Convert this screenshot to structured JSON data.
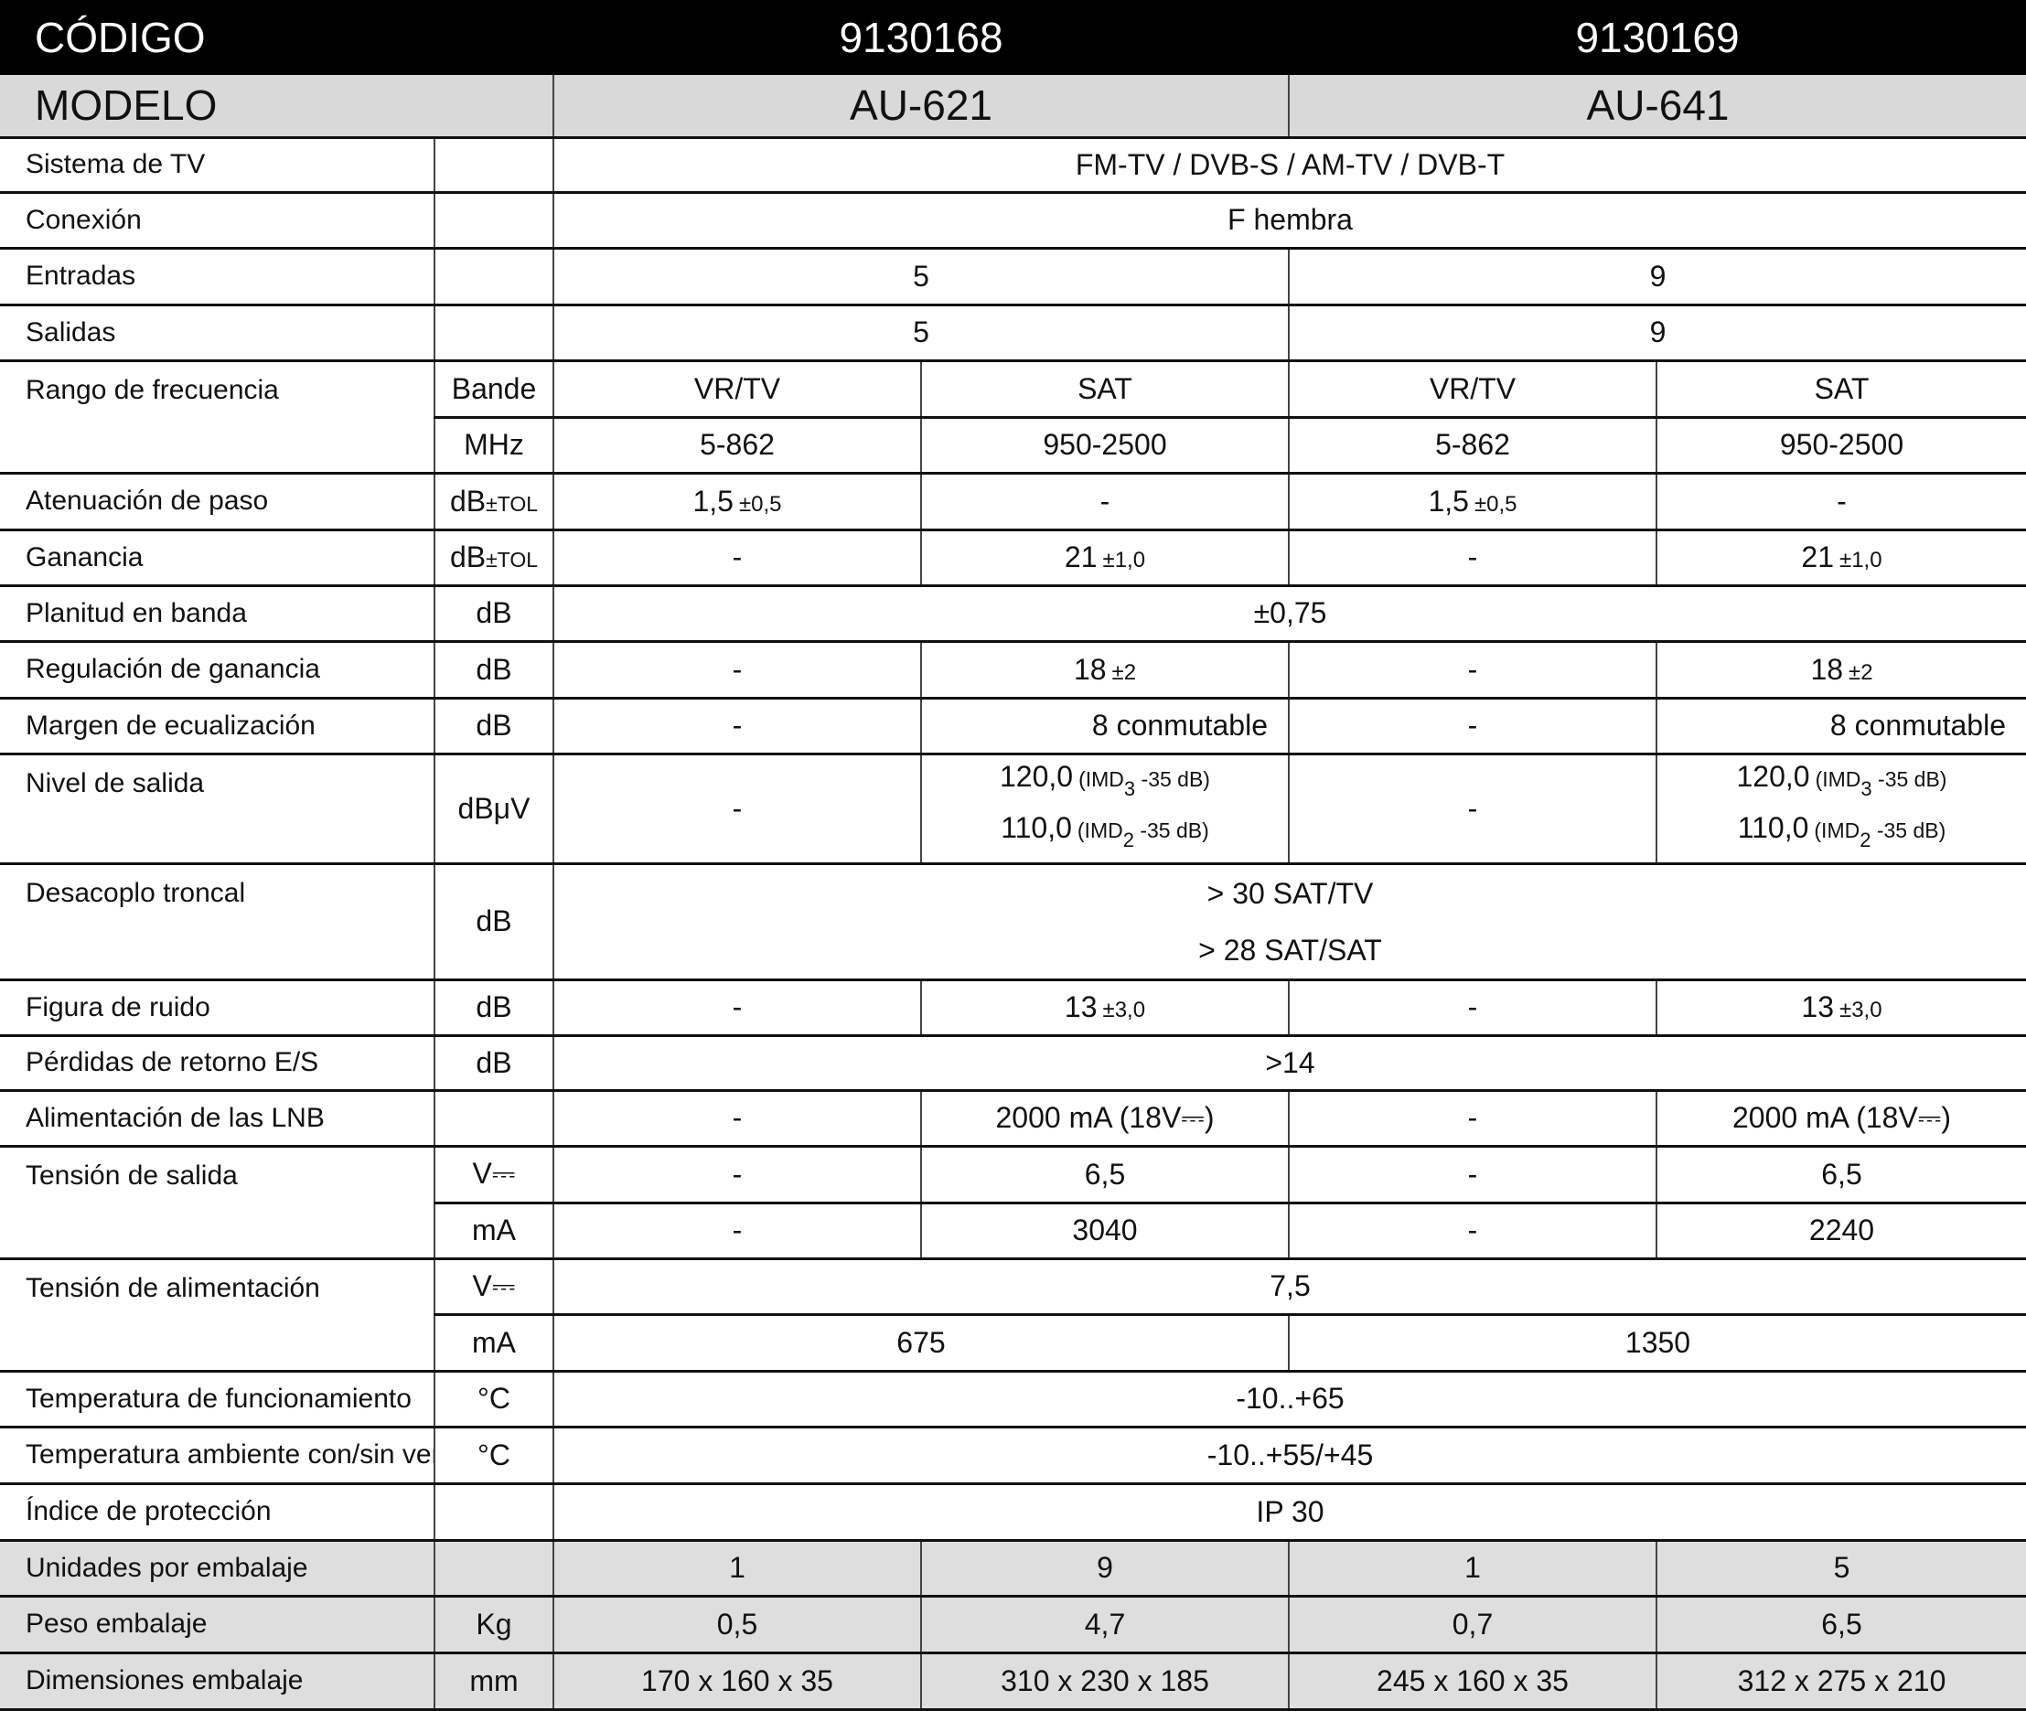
{
  "header": {
    "code_label": "CÓDIGO",
    "codes": [
      "9130168",
      "9130169"
    ],
    "model_label": "MODELO",
    "models": [
      "AU-621",
      "AU-641"
    ]
  },
  "rows": [
    {
      "label": "Sistema de TV",
      "unit": "",
      "cells": [
        {
          "v": "FM-TV / DVB-S / AM-TV / DVB-T",
          "span": 4
        }
      ]
    },
    {
      "label": "Conexión",
      "unit": "",
      "cells": [
        {
          "v": "F hembra",
          "span": 4
        }
      ]
    },
    {
      "label": "Entradas",
      "unit": "",
      "cells": [
        {
          "v": "5",
          "span": 2
        },
        {
          "v": "9",
          "span": 2
        }
      ]
    },
    {
      "label": "Salidas",
      "unit": "",
      "cells": [
        {
          "v": "5",
          "span": 2
        },
        {
          "v": "9",
          "span": 2
        }
      ]
    },
    {
      "label": "Rango de frecuencia",
      "rowspan": 2,
      "unit": "Bande",
      "cells": [
        {
          "v": "VR/TV"
        },
        {
          "v": "SAT"
        },
        {
          "v": "VR/TV"
        },
        {
          "v": "SAT"
        }
      ]
    },
    {
      "unit": "MHz",
      "cells": [
        {
          "v": "5-862"
        },
        {
          "v": "950-2500"
        },
        {
          "v": "5-862"
        },
        {
          "v": "950-2500"
        }
      ]
    },
    {
      "label": "Atenuación de paso",
      "unit": "dB",
      "unit_tol": "±TOL",
      "cells": [
        {
          "v": "1,5",
          "tol": "±0,5"
        },
        {
          "v": "-"
        },
        {
          "v": "1,5",
          "tol": "±0,5"
        },
        {
          "v": "-"
        }
      ]
    },
    {
      "label": "Ganancia",
      "unit": "dB",
      "unit_tol": "±TOL",
      "cells": [
        {
          "v": "-"
        },
        {
          "v": "21",
          "tol": "±1,0"
        },
        {
          "v": "-"
        },
        {
          "v": "21",
          "tol": "±1,0"
        }
      ]
    },
    {
      "label": "Planitud en banda",
      "unit": "dB",
      "cells": [
        {
          "v": "±0,75",
          "span": 4
        }
      ]
    },
    {
      "label": "Regulación de ganancia",
      "unit": "dB",
      "cells": [
        {
          "v": "-"
        },
        {
          "v": "18",
          "tol": "±2"
        },
        {
          "v": "-"
        },
        {
          "v": "18",
          "tol": "±2"
        }
      ]
    },
    {
      "label": "Margen de ecualización",
      "unit": "dB",
      "cells": [
        {
          "v": "-"
        },
        {
          "v": "8 conmutable",
          "align": "right"
        },
        {
          "v": "-"
        },
        {
          "v": "8 conmutable",
          "align": "right"
        }
      ]
    },
    {
      "label": "Nivel de salida",
      "unit": "dBμV",
      "cells": [
        {
          "v": "-"
        },
        {
          "lines": [
            {
              "v": "120,0",
              "note": "(IMD",
              "sub": "3",
              "note2": " -35 dB)"
            },
            {
              "v": "110,0",
              "note": "(IMD",
              "sub": "2",
              "note2": " -35 dB)"
            }
          ]
        },
        {
          "v": "-"
        },
        {
          "lines": [
            {
              "v": "120,0",
              "note": "(IMD",
              "sub": "3",
              "note2": " -35 dB)"
            },
            {
              "v": "110,0",
              "note": "(IMD",
              "sub": "2",
              "note2": " -35 dB)"
            }
          ]
        }
      ]
    },
    {
      "label": "Desacoplo troncal",
      "unit": "dB",
      "cells": [
        {
          "lines": [
            {
              "v": "> 30 SAT/TV"
            },
            {
              "v": "> 28 SAT/SAT"
            }
          ],
          "span": 4,
          "desc": true
        }
      ]
    },
    {
      "label": "Figura de ruido",
      "unit": "dB",
      "cells": [
        {
          "v": "-"
        },
        {
          "v": "13",
          "tol": "±3,0"
        },
        {
          "v": "-"
        },
        {
          "v": "13",
          "tol": "±3,0"
        }
      ]
    },
    {
      "label": "Pérdidas de retorno E/S",
      "unit": "dB",
      "cells": [
        {
          "v": ">14",
          "span": 4
        }
      ]
    },
    {
      "label": "Alimentación de las LNB",
      "unit": "",
      "cells": [
        {
          "v": "-"
        },
        {
          "v": "2000 mA (18V⎓)"
        },
        {
          "v": "-"
        },
        {
          "v": "2000 mA (18V⎓)"
        }
      ]
    },
    {
      "label": "Tensión de salida",
      "rowspan": 2,
      "unit": "V⎓",
      "cells": [
        {
          "v": "-"
        },
        {
          "v": "6,5"
        },
        {
          "v": "-"
        },
        {
          "v": "6,5"
        }
      ]
    },
    {
      "unit": "mA",
      "cells": [
        {
          "v": "-"
        },
        {
          "v": "3040"
        },
        {
          "v": "-"
        },
        {
          "v": "2240"
        }
      ]
    },
    {
      "label": "Tensión de alimentación",
      "rowspan": 2,
      "unit": "V⎓",
      "cells": [
        {
          "v": "7,5",
          "span": 4
        }
      ]
    },
    {
      "unit": "mA",
      "cells": [
        {
          "v": "675",
          "span": 2
        },
        {
          "v": "1350",
          "span": 2
        }
      ]
    },
    {
      "label": "Temperatura de funcionamiento",
      "unit": "°C",
      "cells": [
        {
          "v": "-10..+65",
          "span": 4
        }
      ]
    },
    {
      "label": "Temperatura ambiente con/sin ventilador",
      "unit": "°C",
      "cells": [
        {
          "v": "-10..+55/+45",
          "span": 4
        }
      ]
    },
    {
      "label": "Índice de protección",
      "unit": "",
      "cells": [
        {
          "v": "IP 30",
          "span": 4
        }
      ]
    },
    {
      "label": "Unidades por embalaje",
      "unit": "",
      "gray": true,
      "cells": [
        {
          "v": "1"
        },
        {
          "v": "9"
        },
        {
          "v": "1"
        },
        {
          "v": "5"
        }
      ]
    },
    {
      "label": "Peso embalaje",
      "unit": "Kg",
      "gray": true,
      "cells": [
        {
          "v": "0,5"
        },
        {
          "v": "4,7"
        },
        {
          "v": "0,7"
        },
        {
          "v": "6,5"
        }
      ]
    },
    {
      "label": "Dimensiones embalaje",
      "unit": "mm",
      "gray": true,
      "cells": [
        {
          "v": "170 x 160 x 35"
        },
        {
          "v": "310 x 230 x 185"
        },
        {
          "v": "245 x 160 x 35"
        },
        {
          "v": "312 x 275 x 210"
        }
      ]
    }
  ]
}
